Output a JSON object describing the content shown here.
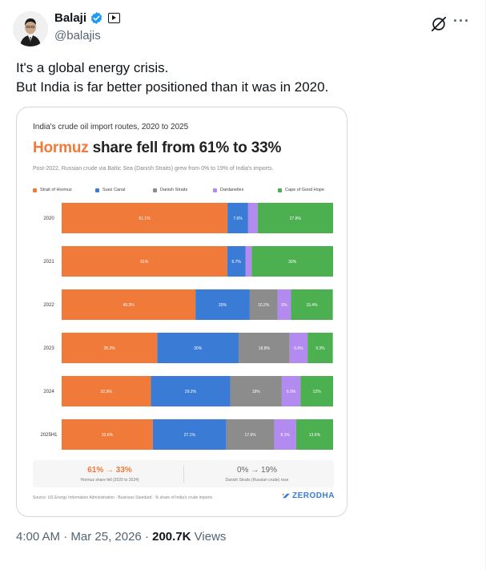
{
  "author": {
    "name": "Balaji",
    "handle": "@balajis"
  },
  "tweet": {
    "lines": [
      "It's a global energy crisis.",
      "But India is far better positioned than it was in 2020."
    ]
  },
  "media": {
    "small_title": "India's crude oil import routes, 2020 to 2025",
    "headline_accent": "Hormuz",
    "headline_rest": " share fell from 61% to 33%",
    "note": "Post-2022, Russian crude via Baltic Sea (Danish Straits) grew from 0% to 19% of India's imports.",
    "summary": {
      "left_value": "61% → 33%",
      "left_caption": "Hormuz share fell (2020 to 2024)",
      "right_value": "0% → 19%",
      "right_caption": "Danish Straits (Russian crude) rose"
    },
    "source": "Source: US Energy Information Administration · Business Standard · % share of India's crude imports",
    "brand": "ZERODHA",
    "colors": {
      "hormuz": "#f07a3a",
      "suez": "#3a7bd5",
      "danish": "#8c8c8c",
      "dardanelles": "#b38af0",
      "cape": "#4caf50"
    }
  },
  "chart_data": {
    "type": "bar",
    "orientation": "horizontal-stacked",
    "categories": [
      "2020",
      "2021",
      "2022",
      "2023",
      "2024",
      "2025H1"
    ],
    "series": [
      {
        "name": "Strait of Hormuz",
        "color": "#f07a3a",
        "values": [
          61.1,
          61,
          49.3,
          35.2,
          32.9,
          33.6
        ],
        "labels": [
          "61.1%",
          "61%",
          "49.3%",
          "35.2%",
          "32.9%",
          "33.6%"
        ]
      },
      {
        "name": "Suez Canal",
        "color": "#3a7bd5",
        "values": [
          7.6,
          6.7,
          20,
          30,
          29.2,
          27.1
        ],
        "labels": [
          "7.6%",
          "6.7%",
          "20%",
          "30%",
          "29.2%",
          "27.1%"
        ]
      },
      {
        "name": "Danish Straits",
        "color": "#8c8c8c",
        "values": [
          0,
          0,
          10.2,
          18.8,
          19,
          17.6
        ],
        "labels": [
          "",
          "",
          "10.2%",
          "18.8%",
          "19%",
          "17.6%"
        ]
      },
      {
        "name": "Dardanelles",
        "color": "#b38af0",
        "values": [
          3.5,
          2.3,
          5,
          6.6,
          6.9,
          8.1
        ],
        "labels": [
          "",
          "",
          "5%",
          "6.6%",
          "6.9%",
          "8.1%"
        ]
      },
      {
        "name": "Cape of Good Hope",
        "color": "#4caf50",
        "values": [
          27.8,
          30,
          15.4,
          9.3,
          12,
          13.6
        ],
        "labels": [
          "27.8%",
          "30%",
          "15.4%",
          "9.3%",
          "12%",
          "13.6%"
        ]
      }
    ],
    "xlim": [
      0,
      100
    ],
    "legend": "top",
    "grid": false
  },
  "footer": {
    "time": "4:00 AM",
    "date": "Mar 25, 2026",
    "views_count": "200.7K",
    "views_label": "Views"
  }
}
